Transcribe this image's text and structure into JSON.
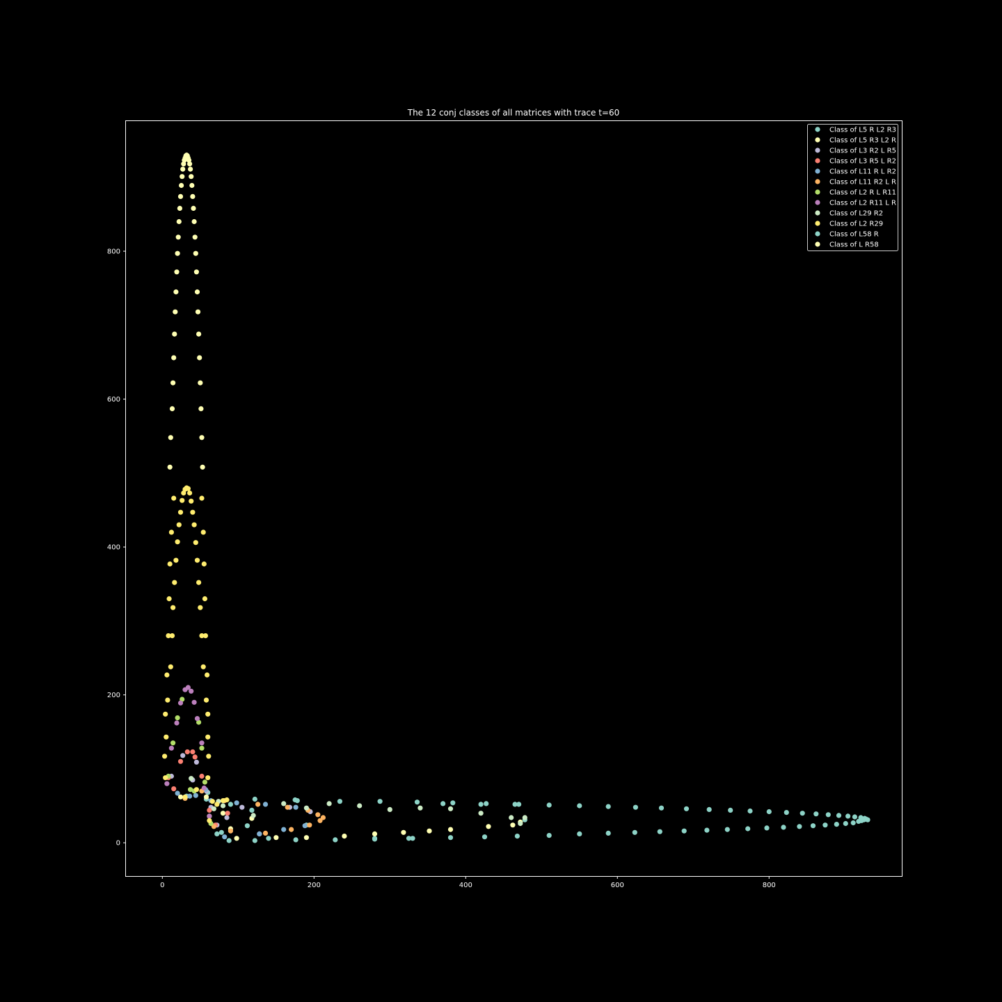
{
  "chart_data": {
    "type": "scatter",
    "title": "The 12 conj classes of all matrices with trace t=60",
    "xlabel": "",
    "ylabel": "",
    "xlim": [
      -48,
      975
    ],
    "ylim": [
      -45,
      976
    ],
    "xticks": [
      0,
      200,
      400,
      600,
      800
    ],
    "yticks": [
      0,
      200,
      400,
      600,
      800
    ],
    "grid": false,
    "legend_position": "top-right",
    "series": [
      {
        "name": "Class of L5 R L2 R3",
        "color": "#8dd3c7",
        "points": [
          [
            32,
            63
          ],
          [
            60,
            68
          ],
          [
            58,
            59
          ],
          [
            78,
            14
          ],
          [
            88,
            3
          ],
          [
            90,
            52
          ],
          [
            112,
            23
          ],
          [
            118,
            44
          ],
          [
            140,
            6
          ],
          [
            175,
            58
          ],
          [
            190,
            24
          ],
          [
            280,
            6
          ],
          [
            325,
            6
          ],
          [
            370,
            53
          ],
          [
            420,
            52
          ],
          [
            465,
            52
          ],
          [
            478,
            31
          ]
        ]
      },
      {
        "name": "Class of L5 R3 L2 R",
        "color": "#ffffb3",
        "points": [
          [
            24,
            62
          ],
          [
            58,
            62
          ],
          [
            62,
            36
          ],
          [
            80,
            40
          ],
          [
            90,
            19
          ],
          [
            98,
            6
          ],
          [
            118,
            33
          ],
          [
            150,
            7
          ],
          [
            190,
            7
          ],
          [
            240,
            9
          ],
          [
            280,
            12
          ],
          [
            318,
            14
          ],
          [
            352,
            16
          ],
          [
            380,
            18
          ],
          [
            430,
            22
          ],
          [
            462,
            24
          ],
          [
            472,
            28
          ]
        ]
      },
      {
        "name": "Class of L3 R2 L R5",
        "color": "#bebada",
        "points": [
          [
            12,
            90
          ],
          [
            27,
            118
          ],
          [
            40,
            85
          ],
          [
            45,
            109
          ],
          [
            58,
            70
          ],
          [
            64,
            48
          ],
          [
            72,
            24
          ],
          [
            85,
            34
          ],
          [
            105,
            48
          ],
          [
            128,
            12
          ],
          [
            168,
            48
          ],
          [
            195,
            42
          ]
        ]
      },
      {
        "name": "Class of L3 R5 L R2",
        "color": "#fb8072",
        "points": [
          [
            8,
            88
          ],
          [
            15,
            73
          ],
          [
            24,
            110
          ],
          [
            33,
            123
          ],
          [
            40,
            123
          ],
          [
            43,
            116
          ],
          [
            52,
            90
          ],
          [
            62,
            44
          ],
          [
            70,
            24
          ],
          [
            86,
            40
          ]
        ]
      },
      {
        "name": "Class of L11 R L R2",
        "color": "#80b1d3",
        "points": [
          [
            20,
            67
          ],
          [
            36,
            63
          ],
          [
            44,
            64
          ],
          [
            57,
            72
          ],
          [
            64,
            57
          ],
          [
            82,
            8
          ],
          [
            98,
            54
          ],
          [
            128,
            12
          ],
          [
            136,
            52
          ],
          [
            160,
            18
          ],
          [
            176,
            48
          ],
          [
            188,
            23
          ]
        ]
      },
      {
        "name": "Class of L11 R2 L R",
        "color": "#fdb462",
        "points": [
          [
            30,
            60
          ],
          [
            52,
            70
          ],
          [
            68,
            22
          ],
          [
            82,
            57
          ],
          [
            90,
            16
          ],
          [
            126,
            52
          ],
          [
            136,
            13
          ],
          [
            165,
            48
          ],
          [
            170,
            18
          ],
          [
            192,
            44
          ],
          [
            194,
            24
          ],
          [
            205,
            38
          ],
          [
            208,
            30
          ],
          [
            212,
            34
          ]
        ]
      },
      {
        "name": "Class of L2 R L R11",
        "color": "#b3de69",
        "points": [
          [
            8,
            90
          ],
          [
            14,
            135
          ],
          [
            20,
            169
          ],
          [
            26,
            194
          ],
          [
            37,
            72
          ],
          [
            42,
            70
          ],
          [
            48,
            163
          ],
          [
            52,
            128
          ],
          [
            56,
            82
          ],
          [
            64,
            26
          ]
        ]
      },
      {
        "name": "Class of L2 R11 L R",
        "color": "#bc80bd",
        "points": [
          [
            6,
            80
          ],
          [
            12,
            128
          ],
          [
            19,
            162
          ],
          [
            24,
            189
          ],
          [
            30,
            207
          ],
          [
            34,
            210
          ],
          [
            38,
            205
          ],
          [
            42,
            190
          ],
          [
            46,
            168
          ],
          [
            52,
            135
          ],
          [
            55,
            74
          ],
          [
            62,
            36
          ]
        ]
      },
      {
        "name": "Class of L29 R2",
        "color": "#ccebc5",
        "points": [
          [
            38,
            87
          ],
          [
            68,
            46
          ],
          [
            74,
            56
          ],
          [
            80,
            50
          ],
          [
            120,
            37
          ],
          [
            160,
            53
          ],
          [
            190,
            47
          ],
          [
            220,
            53
          ],
          [
            260,
            50
          ],
          [
            300,
            45
          ],
          [
            340,
            47
          ],
          [
            380,
            46
          ],
          [
            420,
            40
          ],
          [
            460,
            34
          ],
          [
            472,
            26
          ],
          [
            478,
            34
          ]
        ]
      },
      {
        "name": "Class of L2 R29",
        "color": "#ffed6f",
        "points": [
          [
            3,
            117
          ],
          [
            4,
            174
          ],
          [
            5,
            143
          ],
          [
            6,
            227
          ],
          [
            7,
            193
          ],
          [
            8,
            280
          ],
          [
            9,
            330
          ],
          [
            10,
            377
          ],
          [
            11,
            238
          ],
          [
            12,
            420
          ],
          [
            13,
            280
          ],
          [
            14,
            318
          ],
          [
            15,
            466
          ],
          [
            16,
            352
          ],
          [
            18,
            382
          ],
          [
            20,
            407
          ],
          [
            22,
            430
          ],
          [
            24,
            447
          ],
          [
            26,
            463
          ],
          [
            28,
            473
          ],
          [
            30,
            478
          ],
          [
            32,
            480
          ],
          [
            34,
            479
          ],
          [
            36,
            473
          ],
          [
            38,
            462
          ],
          [
            40,
            447
          ],
          [
            42,
            430
          ],
          [
            44,
            406
          ],
          [
            46,
            382
          ],
          [
            48,
            352
          ],
          [
            50,
            318
          ],
          [
            52,
            280
          ],
          [
            52,
            466
          ],
          [
            54,
            420
          ],
          [
            54,
            238
          ],
          [
            55,
            377
          ],
          [
            56,
            330
          ],
          [
            57,
            280
          ],
          [
            58,
            193
          ],
          [
            59,
            227
          ],
          [
            60,
            143
          ],
          [
            60,
            174
          ],
          [
            61,
            117
          ],
          [
            60,
            88
          ],
          [
            4,
            88
          ],
          [
            45,
            72
          ],
          [
            30,
            62
          ],
          [
            62,
            30
          ],
          [
            66,
            56
          ],
          [
            72,
            52
          ],
          [
            80,
            57
          ],
          [
            85,
            58
          ]
        ]
      },
      {
        "name": "Class of L58 R",
        "color": "#8dd3c7",
        "points": [
          [
            122,
            3
          ],
          [
            176,
            4
          ],
          [
            228,
            4
          ],
          [
            280,
            5
          ],
          [
            330,
            6
          ],
          [
            380,
            7
          ],
          [
            425,
            8
          ],
          [
            468,
            9
          ],
          [
            510,
            10
          ],
          [
            550,
            12
          ],
          [
            588,
            13
          ],
          [
            623,
            14
          ],
          [
            656,
            15
          ],
          [
            688,
            16
          ],
          [
            718,
            17
          ],
          [
            745,
            18
          ],
          [
            772,
            19
          ],
          [
            797,
            20
          ],
          [
            819,
            21
          ],
          [
            840,
            22
          ],
          [
            858,
            23
          ],
          [
            874,
            24
          ],
          [
            889,
            25
          ],
          [
            901,
            26
          ],
          [
            911,
            27
          ],
          [
            918,
            29
          ],
          [
            922,
            30
          ],
          [
            925,
            31
          ],
          [
            928,
            32
          ],
          [
            930,
            31
          ],
          [
            926,
            33
          ],
          [
            921,
            34
          ],
          [
            913,
            35
          ],
          [
            904,
            36
          ],
          [
            892,
            37
          ],
          [
            878,
            38
          ],
          [
            862,
            39
          ],
          [
            844,
            40
          ],
          [
            823,
            41
          ],
          [
            800,
            42
          ],
          [
            775,
            43
          ],
          [
            749,
            44
          ],
          [
            721,
            45
          ],
          [
            691,
            46
          ],
          [
            658,
            47
          ],
          [
            624,
            48
          ],
          [
            588,
            49
          ],
          [
            550,
            50
          ],
          [
            510,
            51
          ],
          [
            470,
            52
          ],
          [
            427,
            53
          ],
          [
            383,
            54
          ],
          [
            336,
            55
          ],
          [
            287,
            56
          ],
          [
            234,
            56
          ],
          [
            178,
            57
          ],
          [
            122,
            59
          ],
          [
            72,
            12
          ]
        ]
      },
      {
        "name": "Class of L R58",
        "color": "#ffffb3",
        "points": [
          [
            10,
            508
          ],
          [
            11,
            548
          ],
          [
            13,
            587
          ],
          [
            14,
            622
          ],
          [
            15,
            656
          ],
          [
            16,
            688
          ],
          [
            17,
            718
          ],
          [
            18,
            745
          ],
          [
            19,
            772
          ],
          [
            20,
            797
          ],
          [
            21,
            819
          ],
          [
            22,
            840
          ],
          [
            23,
            858
          ],
          [
            24,
            874
          ],
          [
            25,
            889
          ],
          [
            26,
            901
          ],
          [
            27,
            911
          ],
          [
            28,
            918
          ],
          [
            29,
            923
          ],
          [
            30,
            926
          ],
          [
            31,
            929
          ],
          [
            32,
            930
          ],
          [
            33,
            929
          ],
          [
            34,
            926
          ],
          [
            35,
            923
          ],
          [
            36,
            918
          ],
          [
            37,
            911
          ],
          [
            38,
            901
          ],
          [
            39,
            889
          ],
          [
            40,
            874
          ],
          [
            41,
            858
          ],
          [
            42,
            840
          ],
          [
            43,
            819
          ],
          [
            44,
            797
          ],
          [
            45,
            772
          ],
          [
            46,
            745
          ],
          [
            47,
            718
          ],
          [
            48,
            688
          ],
          [
            49,
            656
          ],
          [
            50,
            622
          ],
          [
            51,
            587
          ],
          [
            52,
            548
          ],
          [
            53,
            508
          ]
        ]
      }
    ]
  }
}
